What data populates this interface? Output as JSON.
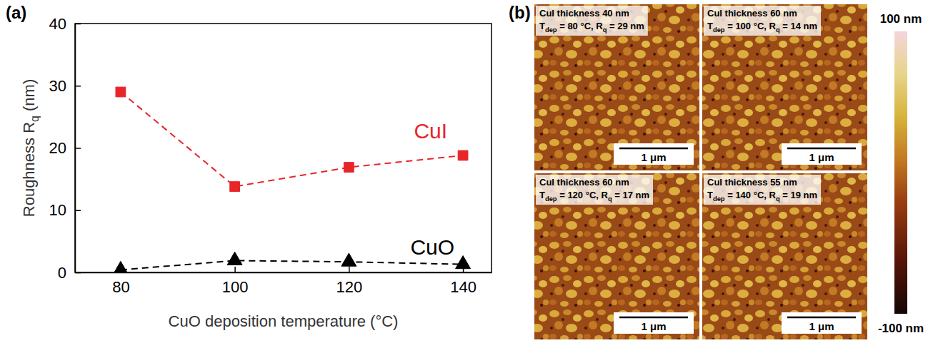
{
  "chart_data": {
    "type": "line",
    "panel_label": "(a)",
    "xlabel": "CuO deposition temperature (°C)",
    "ylabel": [
      {
        "text": "Roughness R"
      },
      {
        "sub": "q"
      },
      {
        "text": " (nm)"
      }
    ],
    "x": [
      80,
      100,
      120,
      140
    ],
    "series": [
      {
        "name": "CuI",
        "color": "#e8262a",
        "marker": "square",
        "line_style": "dashed",
        "values": [
          29,
          13.8,
          16.9,
          18.8
        ]
      },
      {
        "name": "CuO",
        "color": "#000000",
        "marker": "triangle",
        "line_style": "dashed",
        "values": [
          0.4,
          1.9,
          1.7,
          1.3
        ]
      }
    ],
    "xlim": [
      72,
      145
    ],
    "xticks": [
      80,
      100,
      120,
      140
    ],
    "ylim": [
      0,
      40
    ],
    "yticks": [
      0,
      10,
      20,
      30,
      40
    ],
    "grid": false
  },
  "afm_panel": {
    "panel_label": "(b)",
    "images": [
      {
        "line1": "CuI thickness 40 nm",
        "line2": [
          {
            "text": "T"
          },
          {
            "sub": "dep"
          },
          {
            "text": " = 80 °C, R"
          },
          {
            "sub": "q"
          },
          {
            "text": " = 29 nm"
          }
        ],
        "scale_bar": "1 μm"
      },
      {
        "line1": "CuI thickness 60 nm",
        "line2": [
          {
            "text": "T"
          },
          {
            "sub": "dep"
          },
          {
            "text": " = 100 °C, R"
          },
          {
            "sub": "q"
          },
          {
            "text": " = 14 nm"
          }
        ],
        "scale_bar": "1 μm"
      },
      {
        "line1": "CuI thickness 60 nm",
        "line2": [
          {
            "text": "T"
          },
          {
            "sub": "dep"
          },
          {
            "text": " = 120 °C, R"
          },
          {
            "sub": "q"
          },
          {
            "text": " = 17 nm"
          }
        ],
        "scale_bar": "1 μm"
      },
      {
        "line1": "CuI thickness 55 nm",
        "line2": [
          {
            "text": "T"
          },
          {
            "sub": "dep"
          },
          {
            "text": " = 140 °C, R"
          },
          {
            "sub": "q"
          },
          {
            "text": " = 19 nm"
          }
        ],
        "scale_bar": "1 μm"
      }
    ],
    "colorbar": {
      "range": [
        -100,
        100
      ],
      "ticks": [
        {
          "value": 100,
          "label": "100 nm"
        },
        {
          "value": -100,
          "label": "-100 nm"
        }
      ]
    }
  }
}
